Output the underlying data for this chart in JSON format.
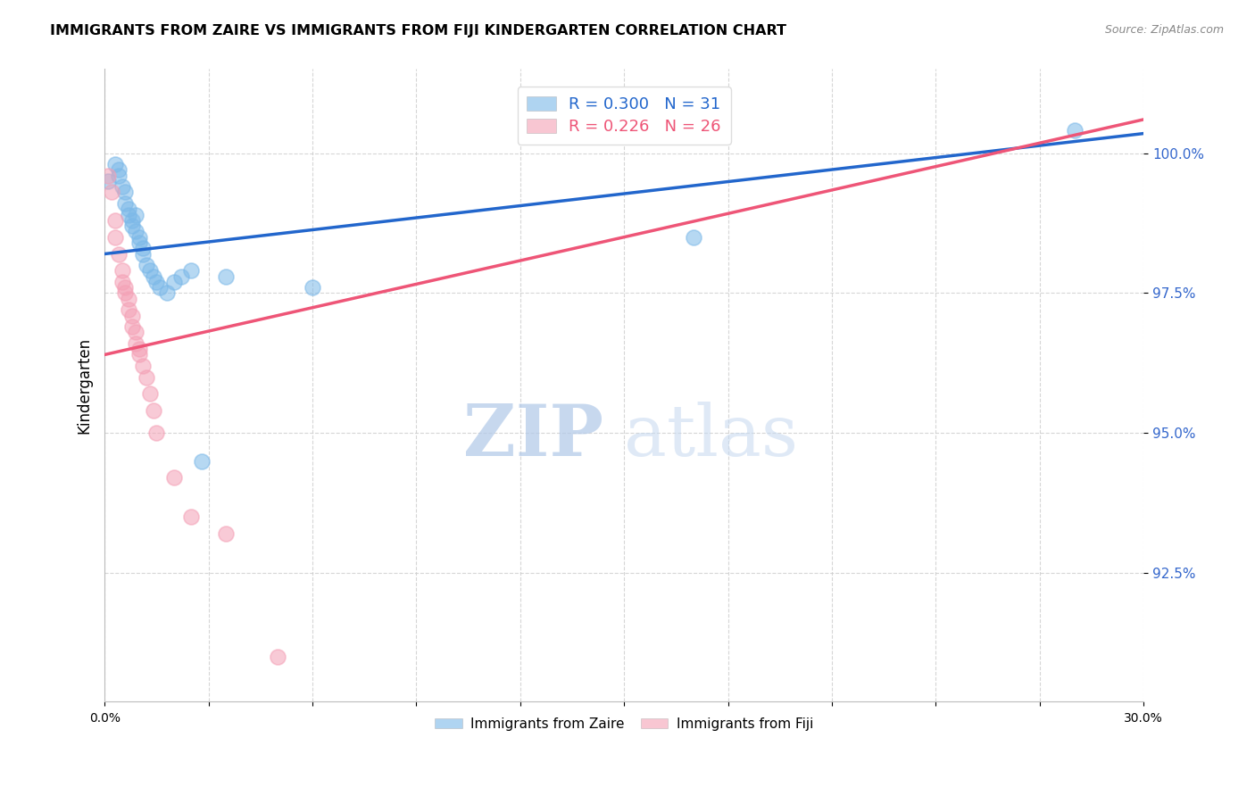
{
  "title": "IMMIGRANTS FROM ZAIRE VS IMMIGRANTS FROM FIJI KINDERGARTEN CORRELATION CHART",
  "source": "Source: ZipAtlas.com",
  "ylabel": "Kindergarten",
  "x_range": [
    0.0,
    0.3
  ],
  "y_range": [
    90.2,
    101.5
  ],
  "legend_blue_r": "R = 0.300",
  "legend_blue_n": "N = 31",
  "legend_pink_r": "R = 0.226",
  "legend_pink_n": "N = 26",
  "blue_color": "#7BB8E8",
  "pink_color": "#F4A0B5",
  "blue_line_color": "#2266CC",
  "pink_line_color": "#EE5577",
  "watermark_zip": "ZIP",
  "watermark_atlas": "atlas",
  "blue_line_x": [
    0.0,
    0.3
  ],
  "blue_line_y": [
    98.2,
    100.35
  ],
  "pink_line_x": [
    0.0,
    0.3
  ],
  "pink_line_y": [
    96.4,
    100.6
  ],
  "zaire_points_x": [
    0.001,
    0.003,
    0.004,
    0.004,
    0.005,
    0.006,
    0.006,
    0.007,
    0.007,
    0.008,
    0.008,
    0.009,
    0.009,
    0.01,
    0.01,
    0.011,
    0.011,
    0.012,
    0.013,
    0.014,
    0.015,
    0.016,
    0.018,
    0.02,
    0.022,
    0.025,
    0.028,
    0.035,
    0.06,
    0.17,
    0.28
  ],
  "zaire_points_y": [
    99.5,
    99.8,
    99.7,
    99.6,
    99.4,
    99.1,
    99.3,
    99.0,
    98.9,
    98.8,
    98.7,
    98.9,
    98.6,
    98.5,
    98.4,
    98.3,
    98.2,
    98.0,
    97.9,
    97.8,
    97.7,
    97.6,
    97.5,
    97.7,
    97.8,
    97.9,
    94.5,
    97.8,
    97.6,
    98.5,
    100.4
  ],
  "fiji_points_x": [
    0.001,
    0.002,
    0.003,
    0.003,
    0.004,
    0.005,
    0.005,
    0.006,
    0.006,
    0.007,
    0.007,
    0.008,
    0.008,
    0.009,
    0.009,
    0.01,
    0.01,
    0.011,
    0.012,
    0.013,
    0.014,
    0.015,
    0.02,
    0.025,
    0.035,
    0.05
  ],
  "fiji_points_y": [
    99.6,
    99.3,
    98.8,
    98.5,
    98.2,
    97.9,
    97.7,
    97.6,
    97.5,
    97.4,
    97.2,
    97.1,
    96.9,
    96.8,
    96.6,
    96.5,
    96.4,
    96.2,
    96.0,
    95.7,
    95.4,
    95.0,
    94.2,
    93.5,
    93.2,
    91.0
  ]
}
